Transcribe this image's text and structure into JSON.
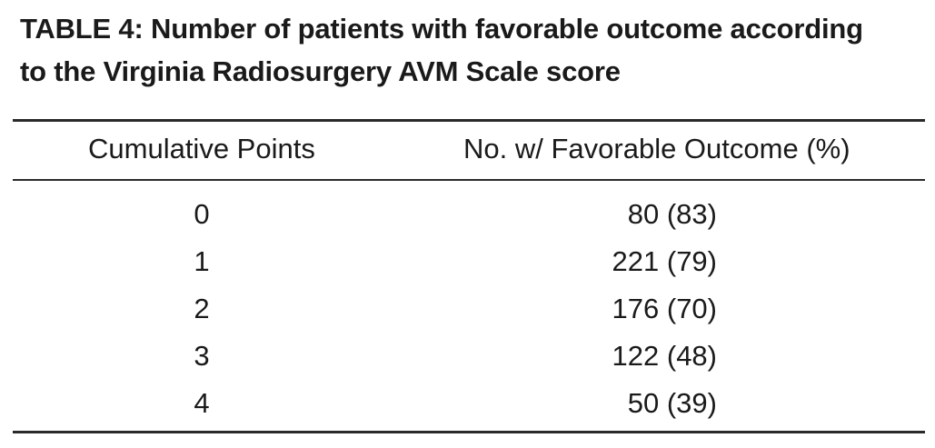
{
  "table": {
    "caption_line1": "TABLE 4: Number of patients with favorable outcome according",
    "caption_line2": "to the Virginia Radiosurgery AVM Scale score",
    "headers": {
      "points": "Cumulative Points",
      "outcome": "No. w/ Favorable Outcome (%)"
    },
    "rows": [
      {
        "points": "0",
        "outcome": "80 (83)"
      },
      {
        "points": "1",
        "outcome": "221 (79)"
      },
      {
        "points": "2",
        "outcome": "176 (70)"
      },
      {
        "points": "3",
        "outcome": "122 (48)"
      },
      {
        "points": "4",
        "outcome": "50 (39)"
      }
    ]
  }
}
